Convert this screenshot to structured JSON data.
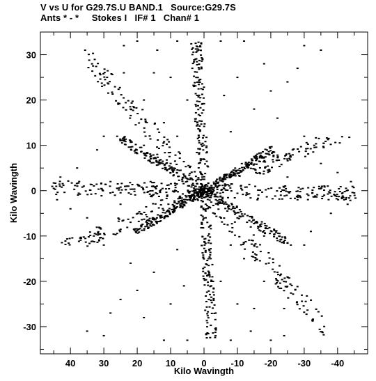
{
  "header": {
    "line1": "V vs U for G29.7S.U BAND.1   Source:G29.7S",
    "line2": "Ants * - *     Stokes I   IF# 1   Chan# 1"
  },
  "chart_data": {
    "type": "scatter",
    "title": "V vs U for G29.7S.U BAND.1   Source:G29.7S",
    "subtitle": "Ants * - *     Stokes I   IF# 1   Chan# 1",
    "xlabel": "Kilo Wavingth",
    "ylabel": "Kilo Wavingth",
    "xlim": [
      49,
      -49
    ],
    "ylim": [
      -36,
      35
    ],
    "x_reversed": true,
    "xticks": [
      40,
      30,
      20,
      10,
      0,
      -10,
      -20,
      -30,
      -40
    ],
    "xtick_labels": [
      "40",
      "30",
      "20",
      "10",
      "0",
      "-10",
      "-20",
      "-30",
      "-40"
    ],
    "yticks": [
      30,
      20,
      10,
      0,
      -10,
      -20,
      -30
    ],
    "ytick_labels": [
      "30",
      "20",
      "10",
      "0",
      "-10",
      "-20",
      "-30"
    ],
    "grid": false,
    "legend": "none",
    "marker_color": "#000000",
    "density_note": "uv coverage: several thousand visibility points forming a six-armed star with 180° symmetry; representative sample below",
    "series": [
      {
        "points": [
          [
            0,
            0
          ],
          [
            2,
            1.5
          ],
          [
            -2,
            -1.5
          ],
          [
            4,
            2.8
          ],
          [
            -4,
            -2.8
          ],
          [
            7,
            4.5
          ],
          [
            -7,
            -4.5
          ],
          [
            10,
            6
          ],
          [
            -10,
            -6
          ],
          [
            14,
            8
          ],
          [
            -14,
            -8
          ],
          [
            18,
            10
          ],
          [
            -18,
            -10
          ],
          [
            22,
            11
          ],
          [
            -22,
            -11
          ],
          [
            26,
            12
          ],
          [
            -26,
            -12
          ],
          [
            1,
            -1
          ],
          [
            -1,
            1
          ],
          [
            3,
            -1.5
          ],
          [
            -3,
            1.5
          ],
          [
            6,
            -3
          ],
          [
            -6,
            3
          ],
          [
            9,
            -4.5
          ],
          [
            -9,
            4.5
          ],
          [
            13,
            -6
          ],
          [
            -13,
            6
          ],
          [
            17,
            -7.5
          ],
          [
            -17,
            7.5
          ],
          [
            21,
            -8.5
          ],
          [
            -21,
            8.5
          ],
          [
            0.5,
            3
          ],
          [
            -0.5,
            -3
          ],
          [
            1,
            7
          ],
          [
            -1,
            -7
          ],
          [
            1.5,
            11
          ],
          [
            -1.5,
            -11
          ],
          [
            2,
            15
          ],
          [
            -2,
            -15
          ],
          [
            2.5,
            19
          ],
          [
            -2.5,
            -19
          ],
          [
            3,
            23
          ],
          [
            -3,
            -23
          ],
          [
            3.5,
            27
          ],
          [
            -3.5,
            -27
          ],
          [
            45,
            0.5
          ],
          [
            -45,
            -0.5
          ],
          [
            44,
            -2
          ],
          [
            -44,
            2
          ],
          [
            43,
            3
          ],
          [
            -43,
            -3
          ],
          [
            40,
            -4
          ],
          [
            -40,
            4
          ],
          [
            38,
            5
          ],
          [
            -38,
            -5
          ],
          [
            35,
            -6
          ],
          [
            -35,
            6
          ],
          [
            20,
            33
          ],
          [
            -20,
            -33
          ],
          [
            24,
            32
          ],
          [
            -24,
            -32
          ],
          [
            14,
            31
          ],
          [
            -14,
            -31
          ],
          [
            8,
            33
          ],
          [
            -8,
            -33
          ],
          [
            -5,
            33
          ],
          [
            5,
            -33
          ],
          [
            -12,
            33
          ],
          [
            12,
            -33
          ],
          [
            -30,
            32
          ],
          [
            30,
            -32
          ],
          [
            -35,
            31
          ],
          [
            35,
            -31
          ],
          [
            -25,
            24
          ],
          [
            25,
            -24
          ],
          [
            -28,
            27
          ],
          [
            28,
            -27
          ],
          [
            -20,
            22
          ],
          [
            20,
            -22
          ],
          [
            -15,
            18
          ],
          [
            15,
            -18
          ],
          [
            24,
            26
          ],
          [
            -24,
            -26
          ],
          [
            18,
            20
          ],
          [
            -18,
            -20
          ],
          [
            12,
            15
          ],
          [
            -12,
            -15
          ],
          [
            30,
            12
          ],
          [
            -30,
            -12
          ],
          [
            30,
            -12
          ],
          [
            -30,
            12
          ],
          [
            32,
            9
          ],
          [
            -32,
            -9
          ],
          [
            33,
            -10
          ],
          [
            -33,
            10
          ],
          [
            10,
            25
          ],
          [
            -10,
            -25
          ],
          [
            -10,
            25
          ],
          [
            10,
            -25
          ],
          [
            5,
            20
          ],
          [
            -5,
            -20
          ],
          [
            -6,
            21
          ],
          [
            6,
            -21
          ],
          [
            16,
            2
          ],
          [
            -16,
            -2
          ],
          [
            11,
            -1
          ],
          [
            -11,
            1
          ],
          [
            8,
            12
          ],
          [
            -8,
            -12
          ],
          [
            -8,
            13
          ],
          [
            8,
            -13
          ],
          [
            25,
            -3
          ],
          [
            -25,
            3
          ],
          [
            23,
            1
          ],
          [
            -23,
            -1
          ],
          [
            28,
            2
          ],
          [
            -28,
            -2
          ],
          [
            36,
            1
          ],
          [
            -36,
            -1
          ],
          [
            15,
            26
          ],
          [
            -15,
            -26
          ],
          [
            -18,
            28
          ],
          [
            18,
            -28
          ],
          [
            22,
            18
          ],
          [
            -22,
            -18
          ],
          [
            -22,
            16
          ],
          [
            22,
            -16
          ]
        ]
      }
    ]
  }
}
